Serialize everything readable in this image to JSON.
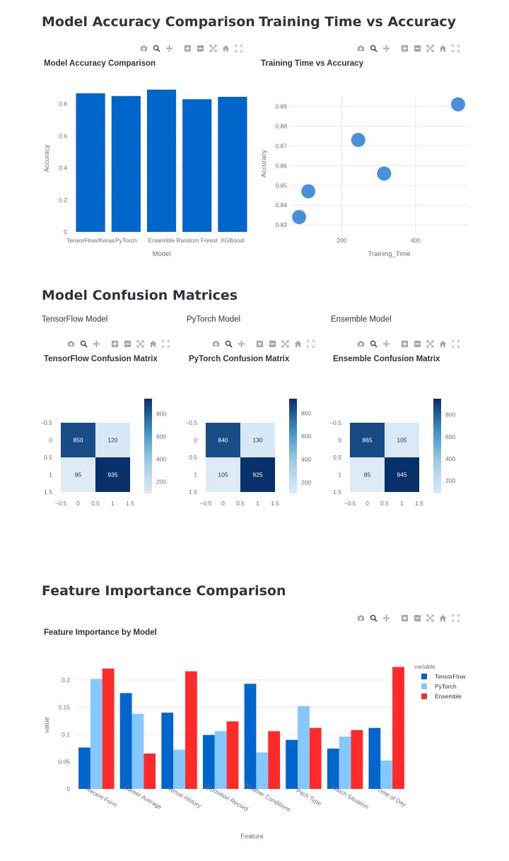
{
  "headings": {
    "accuracy": "Model Accuracy Comparison",
    "training": "Training Time vs Accuracy",
    "confusion": "Model Confusion Matrices",
    "feature": "Feature Importance Comparison"
  },
  "subheaders": [
    "TensorFlow Model",
    "PyTorch Model",
    "Ensemble Model"
  ],
  "toolbar_icons": [
    "camera-icon",
    "zoom-icon",
    "pan-icon",
    "zoom-in-icon",
    "zoom-out-icon",
    "autoscale-icon",
    "home-icon",
    "fullscreen-icon"
  ],
  "colors": {
    "primary": "#0066cc",
    "scatter": "#4a90d9",
    "tensorflow": "#0066cc",
    "pytorch": "#85c8ff",
    "ensemble": "#ff2b2b",
    "text": "#31333f",
    "axis": "#6b6f7a"
  },
  "chart_data": [
    {
      "id": "accuracy",
      "type": "bar",
      "title": "Model Accuracy Comparison",
      "xlabel": "Model",
      "ylabel": "Accuracy",
      "categories": [
        "TensorFlow/Keras",
        "PyTorch",
        "Ensemble",
        "Random Forest",
        "XGBoost"
      ],
      "values": [
        0.867,
        0.85,
        0.89,
        0.83,
        0.845
      ],
      "ylim": [
        0,
        0.92
      ],
      "yticks": [
        "0",
        "0.2",
        "0.4",
        "0.6",
        "0.8"
      ],
      "grid": true
    },
    {
      "id": "training",
      "type": "scatter",
      "title": "Training Time vs Accuracy",
      "xlabel": "Training_Time",
      "ylabel": "Accuracy",
      "points": [
        {
          "x": 85,
          "y": 0.834
        },
        {
          "x": 110,
          "y": 0.847
        },
        {
          "x": 245,
          "y": 0.873
        },
        {
          "x": 315,
          "y": 0.856
        },
        {
          "x": 515,
          "y": 0.891
        }
      ],
      "xlim": [
        60,
        540
      ],
      "ylim": [
        0.8265,
        0.8955
      ],
      "xticks": [
        "200",
        "400"
      ],
      "yticks": [
        "0.83",
        "0.84",
        "0.85",
        "0.86",
        "0.87",
        "0.88",
        "0.89"
      ],
      "grid": true
    },
    {
      "id": "cm-tf",
      "type": "heatmap",
      "title": "TensorFlow Confusion Matrix",
      "matrix": [
        [
          850,
          120
        ],
        [
          95,
          935
        ]
      ],
      "xticks": [
        "−0.5",
        "0",
        "0.5",
        "1",
        "1.5"
      ],
      "yticks": [
        "−0.5",
        "0",
        "0.5",
        "1",
        "1.5"
      ],
      "colorbar_ticks": [
        "800",
        "600",
        "400",
        "200"
      ],
      "colorbar_range": [
        95,
        935
      ]
    },
    {
      "id": "cm-pt",
      "type": "heatmap",
      "title": "PyTorch Confusion Matrix",
      "matrix": [
        [
          840,
          130
        ],
        [
          105,
          925
        ]
      ],
      "xticks": [
        "−0.5",
        "0",
        "0.5",
        "1",
        "1.5"
      ],
      "yticks": [
        "−0.5",
        "0",
        "0.5",
        "1",
        "1.5"
      ],
      "colorbar_ticks": [
        "800",
        "600",
        "400",
        "200"
      ],
      "colorbar_range": [
        105,
        925
      ]
    },
    {
      "id": "cm-en",
      "type": "heatmap",
      "title": "Ensemble Confusion Matrix",
      "matrix": [
        [
          865,
          105
        ],
        [
          85,
          945
        ]
      ],
      "xticks": [
        "−0.5",
        "0",
        "0.5",
        "1",
        "1.5"
      ],
      "yticks": [
        "−0.5",
        "0",
        "0.5",
        "1",
        "1.5"
      ],
      "colorbar_ticks": [
        "800",
        "600",
        "400",
        "200"
      ],
      "colorbar_range": [
        85,
        945
      ]
    },
    {
      "id": "feature",
      "type": "bar",
      "title": "Feature Importance by Model",
      "xlabel": "Feature",
      "ylabel": "value",
      "legend_title": "variable",
      "legend_position": "top-right",
      "categories": [
        "Recent Form",
        "Career Average",
        "Venue History",
        "Opposition Record",
        "Weather Conditions",
        "Pitch Type",
        "Match Situation",
        "Time of Day"
      ],
      "series": [
        {
          "name": "TensorFlow",
          "values": [
            0.076,
            0.176,
            0.14,
            0.099,
            0.193,
            0.09,
            0.074,
            0.112
          ]
        },
        {
          "name": "PyTorch",
          "values": [
            0.202,
            0.138,
            0.072,
            0.106,
            0.067,
            0.152,
            0.096,
            0.052
          ]
        },
        {
          "name": "Ensemble",
          "values": [
            0.221,
            0.065,
            0.216,
            0.124,
            0.106,
            0.112,
            0.108,
            0.224
          ]
        }
      ],
      "ylim": [
        0,
        0.235
      ],
      "yticks": [
        "0",
        "0.05",
        "0.1",
        "0.15",
        "0.2"
      ],
      "grid": true
    }
  ]
}
